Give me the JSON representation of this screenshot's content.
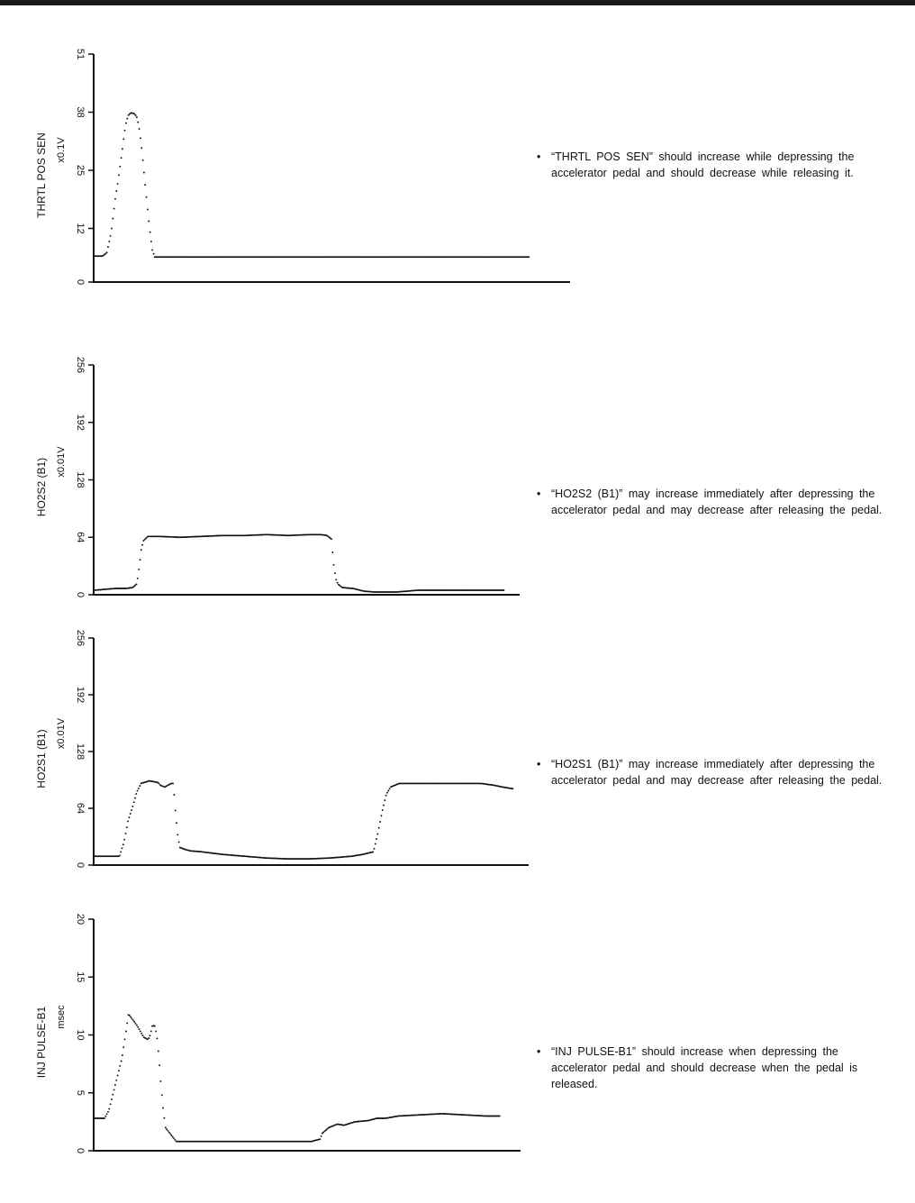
{
  "colors": {
    "ink": "#111111",
    "topbar": "#1a1a1a",
    "background": "#ffffff"
  },
  "chart_data": [
    {
      "type": "scatter",
      "ylabel": "THRTL POS SEN",
      "unit": "x0.1V",
      "ylim": [
        0,
        51
      ],
      "yticks": [
        "0",
        "12",
        "25",
        "38",
        "51"
      ],
      "x": [
        0,
        2,
        4,
        6,
        8,
        9,
        10,
        11,
        12,
        13,
        14,
        15,
        16,
        17,
        18,
        19,
        20,
        21,
        22,
        23,
        24,
        25,
        26,
        27,
        28,
        30,
        32,
        34,
        36,
        38,
        40,
        45,
        50,
        60,
        70,
        80,
        90,
        100,
        110,
        120,
        130,
        140,
        150,
        160,
        170,
        180,
        190,
        200
      ],
      "y": [
        5.8,
        5.8,
        5.8,
        6.5,
        11,
        15,
        19,
        22,
        25.5,
        29,
        33,
        36,
        37.4,
        37.8,
        37.8,
        37.5,
        36.7,
        34,
        30,
        25,
        20,
        15,
        10.5,
        7,
        5.6,
        5.6,
        5.6,
        5.6,
        5.6,
        5.6,
        5.6,
        5.6,
        5.6,
        5.6,
        5.6,
        5.6,
        5.6,
        5.6,
        5.6,
        5.6,
        5.6,
        5.6,
        5.6,
        5.6,
        5.6,
        5.6,
        5.6,
        5.6
      ],
      "note": "“THRTL POS SEN” should increase while depressing the accelerator pedal and should decrease while releasing it."
    },
    {
      "type": "scatter",
      "ylabel": "HO2S2 (B1)",
      "unit": "x0.01V",
      "ylim": [
        0,
        256
      ],
      "yticks": [
        "0",
        "64",
        "128",
        "192",
        "256"
      ],
      "x": [
        0,
        5,
        10,
        15,
        18,
        20,
        21,
        22,
        23,
        25,
        30,
        40,
        50,
        60,
        70,
        80,
        90,
        100,
        105,
        108,
        110,
        111,
        112,
        113,
        115,
        120,
        125,
        130,
        140,
        150,
        160,
        170,
        180,
        190
      ],
      "y": [
        5,
        6,
        7,
        7,
        8,
        12,
        30,
        50,
        60,
        65,
        65,
        64,
        65,
        66,
        66,
        67,
        66,
        67,
        67,
        66,
        62,
        35,
        18,
        12,
        8,
        7,
        4,
        3,
        3,
        5,
        5,
        5,
        5,
        5
      ],
      "note": "“HO2S2 (B1)” may increase immediately after depressing the accelerator pedal and may decrease after releasing the pedal."
    },
    {
      "type": "scatter",
      "ylabel": "HO2S1 (B1)",
      "unit": "x0.01V",
      "ylim": [
        0,
        256
      ],
      "yticks": [
        "0",
        "64",
        "128",
        "192",
        "256"
      ],
      "x": [
        0,
        6,
        12,
        14,
        16,
        18,
        20,
        22,
        26,
        30,
        31,
        33,
        36,
        37,
        38,
        39,
        40,
        42,
        45,
        50,
        60,
        70,
        80,
        90,
        100,
        110,
        120,
        125,
        130,
        132,
        134,
        136,
        138,
        140,
        142,
        146,
        150,
        160,
        170,
        180,
        186,
        190,
        195
      ],
      "y": [
        10,
        10,
        10,
        25,
        50,
        65,
        82,
        92,
        95,
        93,
        90,
        88,
        92,
        92,
        60,
        35,
        20,
        18,
        16,
        15,
        12,
        10,
        8,
        7,
        7,
        8,
        10,
        12,
        15,
        35,
        60,
        80,
        88,
        90,
        92,
        92,
        92,
        92,
        92,
        92,
        90,
        88,
        86
      ],
      "note": "“HO2S1 (B1)” may increase immediately after depressing the accelerator pedal and may decrease after releasing the pedal."
    },
    {
      "type": "scatter",
      "ylabel": "INJ PULSE-B1",
      "unit": "msec",
      "ylim": [
        0,
        20
      ],
      "yticks": [
        "0",
        "5",
        "10",
        "15",
        "20"
      ],
      "x": [
        0,
        5,
        7,
        9,
        11,
        13,
        15,
        16,
        18,
        20,
        23,
        25,
        26,
        27,
        28,
        29,
        30,
        31,
        32,
        33,
        35,
        38,
        40,
        45,
        50,
        60,
        80,
        100,
        104,
        105,
        108,
        112,
        115,
        120,
        126,
        130,
        134,
        140,
        150,
        160,
        170,
        180,
        187
      ],
      "y": [
        2.8,
        2.8,
        3.5,
        5,
        6.5,
        8,
        10.5,
        11.8,
        11.3,
        10.8,
        9.8,
        9.6,
        10,
        10.8,
        10.8,
        10,
        8,
        5.5,
        3.5,
        2,
        1.5,
        0.8,
        0.8,
        0.8,
        0.8,
        0.8,
        0.8,
        0.8,
        1,
        1.5,
        2,
        2.3,
        2.2,
        2.5,
        2.6,
        2.8,
        2.8,
        3,
        3.1,
        3.2,
        3.1,
        3,
        3
      ],
      "note": "“INJ PULSE-B1” should increase when depressing the accelerator pedal and should decrease when the pedal is released."
    }
  ]
}
